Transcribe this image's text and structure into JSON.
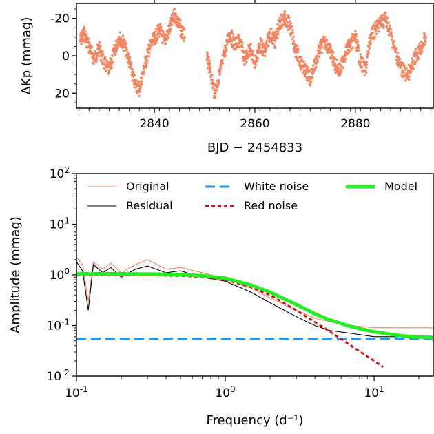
{
  "chart_data": [
    {
      "type": "scatter",
      "xlabel": "BJD − 2454833",
      "ylabel": "ΔKp (mmag)",
      "xlim": [
        2824.5,
        2895.5
      ],
      "ylim": [
        28,
        -28
      ],
      "y_inverted": true,
      "xticks": [
        2840,
        2860,
        2880
      ],
      "xtick_labels": [
        "2840",
        "2860",
        "2880"
      ],
      "yticks": [
        -20,
        0,
        20
      ],
      "ytick_labels": [
        "-20",
        "0",
        "20"
      ],
      "grid": false,
      "series": [
        {
          "color": "#f4845f",
          "x": [
            2825.2,
            2826.0,
            2827.0,
            2828.0,
            2829.0,
            2830.0,
            2831.0,
            2832.0,
            2833.0,
            2834.0,
            2835.0,
            2836.0,
            2837.0,
            2838.0,
            2839.0,
            2840.0,
            2841.0,
            2842.0,
            2843.0,
            2844.0,
            2845.0,
            2846.0,
            2850.5,
            2851.0,
            2852.0,
            2853.0,
            2854.0,
            2855.0,
            2856.0,
            2857.0,
            2858.0,
            2859.0,
            2860.0,
            2861.0,
            2862.0,
            2863.0,
            2864.0,
            2865.0,
            2866.0,
            2867.0,
            2868.0,
            2869.0,
            2870.0,
            2871.0,
            2872.0,
            2873.0,
            2874.0,
            2875.0,
            2876.0,
            2877.0,
            2878.0,
            2879.0,
            2880.0,
            2881.0,
            2882.0,
            2883.0,
            2884.0,
            2885.0,
            2886.0,
            2887.0,
            2888.0,
            2889.0,
            2890.0,
            2891.0,
            2892.0,
            2893.0,
            2894.0
          ],
          "y": [
            -8,
            -12,
            -5,
            2,
            -4,
            4,
            8,
            -2,
            -10,
            -6,
            3,
            14,
            18,
            6,
            -4,
            -9,
            -14,
            -8,
            -14,
            -22,
            -16,
            -10,
            2,
            6,
            20,
            10,
            -2,
            -12,
            -6,
            -8,
            2,
            -4,
            4,
            -6,
            -2,
            -12,
            -8,
            -18,
            -20,
            -16,
            -4,
            3,
            8,
            12,
            4,
            -4,
            -8,
            -2,
            5,
            8,
            -2,
            -6,
            -10,
            3,
            8,
            -10,
            -14,
            -18,
            -20,
            -12,
            -2,
            6,
            10,
            8,
            0,
            -4,
            -10
          ]
        }
      ]
    },
    {
      "type": "line",
      "xlabel": "Frequency (d⁻¹)",
      "ylabel": "Amplitude (mmag)",
      "xscale": "log",
      "yscale": "log",
      "xlim": [
        0.1,
        25
      ],
      "ylim": [
        0.01,
        100
      ],
      "grid": false,
      "legend_position": "top",
      "series": [
        {
          "name": "Original",
          "color": "#f4845f",
          "x": [
            0.1,
            0.11,
            0.12,
            0.13,
            0.15,
            0.17,
            0.2,
            0.25,
            0.3,
            0.4,
            0.5,
            0.7,
            1.0,
            1.5,
            2.0,
            3.0,
            4.0,
            5.0,
            7.0,
            10.0,
            15.0,
            20.0,
            25.0
          ],
          "y": [
            2.2,
            1.6,
            0.3,
            1.8,
            1.3,
            1.7,
            1.1,
            1.6,
            2.0,
            1.3,
            1.4,
            1.1,
            0.85,
            0.55,
            0.35,
            0.2,
            0.14,
            0.12,
            0.1,
            0.09,
            0.09,
            0.09,
            0.09
          ]
        },
        {
          "name": "Residual",
          "color": "#000000",
          "x": [
            0.1,
            0.11,
            0.12,
            0.13,
            0.15,
            0.17,
            0.2,
            0.25,
            0.3,
            0.4,
            0.5,
            0.7,
            1.0,
            1.5,
            2.0,
            3.0,
            4.0,
            5.0,
            7.0,
            10.0,
            15.0,
            20.0,
            25.0
          ],
          "y": [
            1.8,
            1.2,
            0.2,
            1.6,
            1.1,
            1.4,
            0.9,
            1.3,
            1.5,
            1.1,
            1.2,
            0.9,
            0.75,
            0.45,
            0.28,
            0.15,
            0.1,
            0.08,
            0.07,
            0.06,
            0.06,
            0.06,
            0.06
          ]
        },
        {
          "name": "White noise",
          "color": "#2196f3",
          "style": "dashed",
          "x": [
            0.1,
            25
          ],
          "y": [
            0.055,
            0.055
          ]
        },
        {
          "name": "Red noise",
          "color": "#e01010",
          "style": "dotted",
          "x": [
            0.1,
            0.2,
            0.3,
            0.5,
            0.7,
            1.0,
            1.5,
            2.0,
            3.0,
            4.0,
            5.0,
            7.0,
            10.0,
            11.5
          ],
          "y": [
            1.0,
            1.0,
            0.99,
            0.96,
            0.91,
            0.8,
            0.57,
            0.4,
            0.2,
            0.117,
            0.077,
            0.04,
            0.02,
            0.0151
          ]
        },
        {
          "name": "Model",
          "color": "#22ee22",
          "x": [
            0.1,
            0.2,
            0.3,
            0.5,
            0.7,
            1.0,
            1.5,
            2.0,
            3.0,
            4.0,
            5.0,
            7.0,
            10.0,
            15.0,
            20.0,
            25.0
          ],
          "y": [
            1.055,
            1.05,
            1.04,
            1.01,
            0.96,
            0.86,
            0.625,
            0.455,
            0.26,
            0.17,
            0.13,
            0.095,
            0.075,
            0.063,
            0.059,
            0.058
          ]
        }
      ]
    }
  ]
}
